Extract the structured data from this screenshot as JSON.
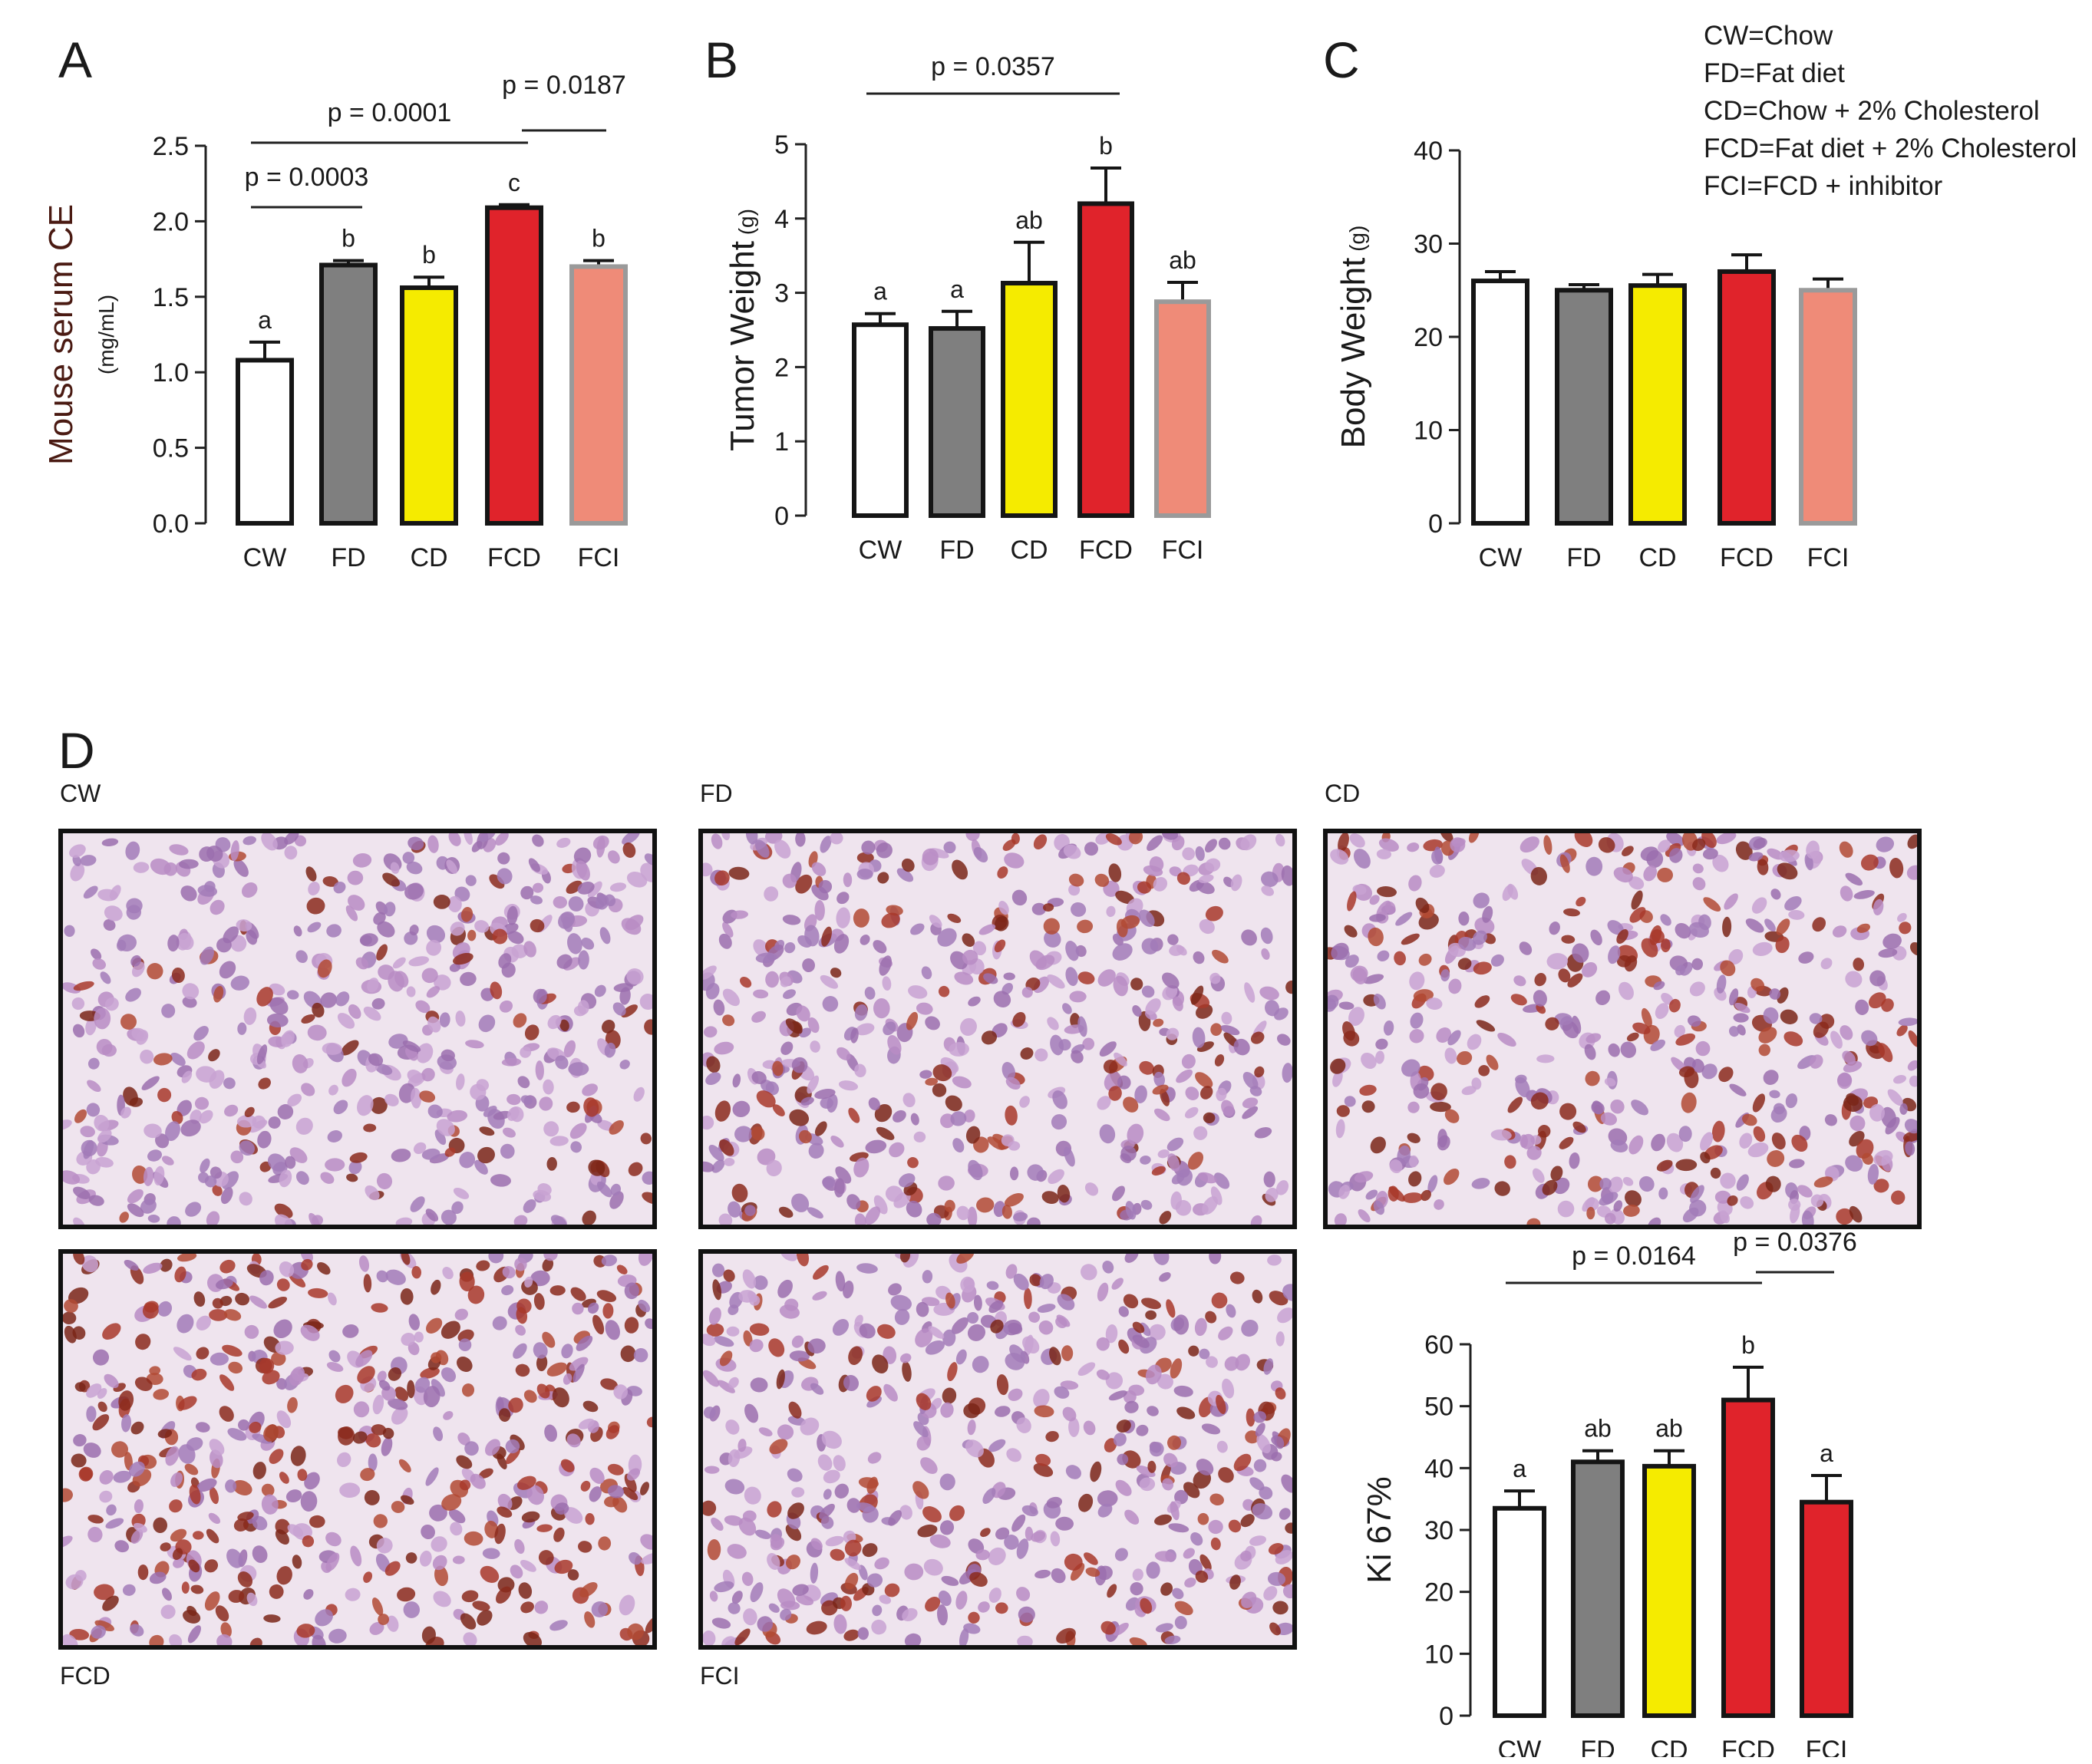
{
  "panels": {
    "a": "A",
    "b": "B",
    "c": "C",
    "d": "D"
  },
  "legend": [
    "CW=Chow",
    "FD=Fat diet",
    "CD=Chow + 2% Cholesterol",
    "FCD=Fat diet + 2% Cholesterol",
    "FCI=FCD + inhibitor"
  ],
  "colors": {
    "CW": "#ffffff",
    "FD": "#7f7f7f",
    "CD": "#f5eb00",
    "FCD": "#e0232b",
    "FCI": "#ef8b78",
    "FCI_ki67": "#e0232b"
  },
  "microscopy": {
    "labels": [
      "CW",
      "FD",
      "CD",
      "FCD",
      "FCI"
    ]
  },
  "chart_data": [
    {
      "type": "bar",
      "panel": "A",
      "ylabel": "Mouse serum CE",
      "yunit": "(mg/mL)",
      "categories": [
        "CW",
        "FD",
        "CD",
        "FCD",
        "FCI"
      ],
      "values": [
        1.08,
        1.71,
        1.56,
        2.09,
        1.7
      ],
      "errors": [
        0.12,
        0.03,
        0.07,
        0.02,
        0.04
      ],
      "letters": [
        "a",
        "b",
        "b",
        "c",
        "b"
      ],
      "ylim": [
        0,
        2.5
      ],
      "yticks": [
        "0.0",
        "0.5",
        "1.0",
        "1.5",
        "2.0",
        "2.5"
      ],
      "comparisons": [
        {
          "text": "p = 0.0003",
          "from": 0,
          "to": 1
        },
        {
          "text": "p = 0.0001",
          "from": 0,
          "to": 3
        },
        {
          "text": "p = 0.0187",
          "from": 3,
          "to": 4
        }
      ]
    },
    {
      "type": "bar",
      "panel": "B",
      "ylabel": "Tumor Weight",
      "yunit": "(g)",
      "categories": [
        "CW",
        "FD",
        "CD",
        "FCD",
        "FCI"
      ],
      "values": [
        2.57,
        2.52,
        3.13,
        4.2,
        2.88
      ],
      "errors": [
        0.15,
        0.23,
        0.55,
        0.48,
        0.26
      ],
      "letters": [
        "a",
        "a",
        "ab",
        "b",
        "ab"
      ],
      "ylim": [
        0,
        5
      ],
      "yticks": [
        "0",
        "1",
        "2",
        "3",
        "4",
        "5"
      ],
      "comparisons": [
        {
          "text": "p = 0.0357",
          "from": 0,
          "to": 3
        }
      ]
    },
    {
      "type": "bar",
      "panel": "C",
      "ylabel": "Body Weight",
      "yunit": "(g)",
      "categories": [
        "CW",
        "FD",
        "CD",
        "FCD",
        "FCI"
      ],
      "values": [
        26.0,
        25.0,
        25.5,
        27.0,
        25.0
      ],
      "errors": [
        1.0,
        0.6,
        1.2,
        1.8,
        1.2
      ],
      "letters": [],
      "ylim": [
        0,
        40
      ],
      "yticks": [
        "0",
        "10",
        "20",
        "30",
        "40"
      ],
      "comparisons": []
    },
    {
      "type": "bar",
      "panel": "D",
      "ylabel": "Ki 67%",
      "yunit": "",
      "categories": [
        "CW",
        "FD",
        "CD",
        "FCD",
        "FCI"
      ],
      "values": [
        33.5,
        41.0,
        40.3,
        51.0,
        34.5
      ],
      "errors": [
        2.8,
        1.8,
        2.5,
        5.3,
        4.3
      ],
      "letters": [
        "a",
        "ab",
        "ab",
        "b",
        "a"
      ],
      "ylim": [
        0,
        60
      ],
      "yticks": [
        "0",
        "10",
        "20",
        "30",
        "40",
        "50",
        "60"
      ],
      "comparisons": [
        {
          "text": "p = 0.0164",
          "from": 0,
          "to": 3
        },
        {
          "text": "p = 0.0376",
          "from": 3,
          "to": 4
        }
      ]
    }
  ]
}
